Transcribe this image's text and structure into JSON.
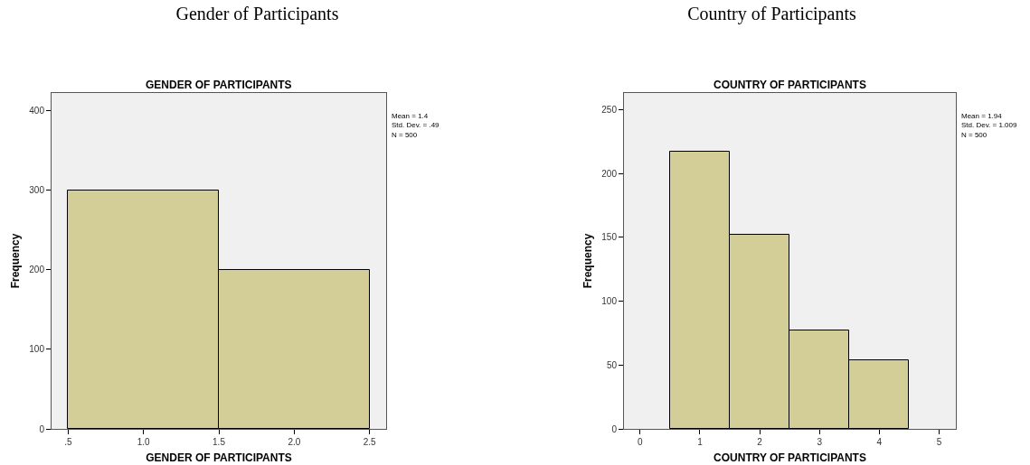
{
  "chart_data": [
    {
      "type": "histogram",
      "title": "Gender of Participants",
      "subtitle": "GENDER OF PARTICIPANTS",
      "xlabel": "GENDER OF PARTICIPANTS",
      "ylabel": "Frequency",
      "bins": [
        0.5,
        1.5,
        2.5
      ],
      "values": [
        300,
        200
      ],
      "color": "#d3ce97",
      "xlim": [
        0.39,
        2.61
      ],
      "ylim": [
        0,
        422
      ],
      "xticks": [
        {
          "value": 0.5,
          "label": ".5"
        },
        {
          "value": 1,
          "label": "1.0"
        },
        {
          "value": 1.5,
          "label": "1.5"
        },
        {
          "value": 2,
          "label": "2.0"
        },
        {
          "value": 2.5,
          "label": "2.5"
        }
      ],
      "yticks": [
        0,
        100,
        200,
        300,
        400
      ],
      "grid": false,
      "annotations": [
        "Mean = 1.4\nStd. Dev. = .49\nN = 500"
      ]
    },
    {
      "type": "histogram",
      "title": "Country of Participants",
      "subtitle": "COUNTRY OF PARTICIPANTS",
      "xlabel": "COUNTRY OF PARTICIPANTS",
      "ylabel": "Frequency",
      "bins": [
        0.5,
        1.5,
        2.5,
        3.5,
        4.5
      ],
      "values": [
        217,
        152,
        77,
        54
      ],
      "color": "#d3ce97",
      "xlim": [
        -0.27,
        5.28
      ],
      "ylim": [
        0,
        263
      ],
      "xticks": [
        0,
        1,
        2,
        3,
        4,
        5
      ],
      "yticks": [
        0,
        50,
        100,
        150,
        200,
        250
      ],
      "grid": false,
      "annotations": [
        "Mean = 1.94\nStd. Dev. = 1.009\nN = 500"
      ]
    }
  ]
}
